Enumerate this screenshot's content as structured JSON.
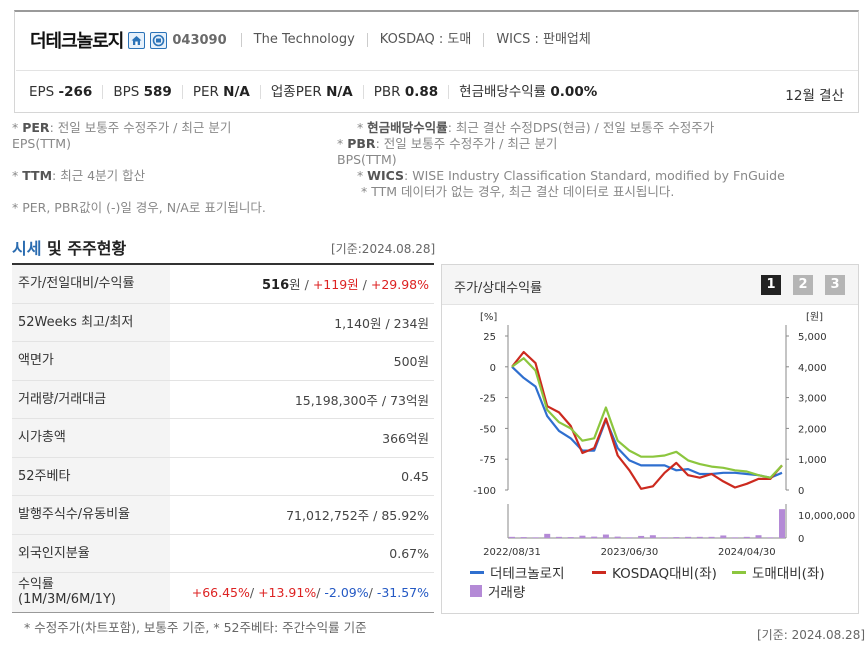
{
  "company": {
    "name": "더테크놀로지",
    "code": "043090",
    "english_name": "The Technology",
    "market": "KOSDAQ : 도매",
    "wics": "WICS : 판매업체",
    "icons": [
      "home-icon",
      "ir-icon"
    ]
  },
  "metrics": [
    {
      "label": "EPS",
      "value": "-266"
    },
    {
      "label": "BPS",
      "value": "589"
    },
    {
      "label": "PER",
      "value": "N/A"
    },
    {
      "label": "업종PER",
      "value": "N/A"
    },
    {
      "label": "PBR",
      "value": "0.88"
    },
    {
      "label": "현금배당수익률",
      "value": "0.00%"
    }
  ],
  "settlement": "12월 결산",
  "notes": {
    "per_label": "PER",
    "per_text": ": 전일 보통주 수정주가 / 최근 분기",
    "per_text2": "EPS(TTM)",
    "ttm_label": "TTM",
    "ttm_text": ": 최근 4분기 합산",
    "na_text": "* PER, PBR값이 (-)일 경우, N/A로 표기됩니다.",
    "div_label": "현금배당수익률",
    "div_text": ": 최근 결산 수정DPS(현금) / 전일 보통주 수정주가",
    "pbr_label": "PBR",
    "pbr_text": ": 전일 보통주 수정주가 / 최근 분기",
    "pbr_text2": "BPS(TTM)",
    "wics_label": "WICS",
    "wics_text": ": WISE Industry Classification Standard, modified by FnGuide",
    "ttm_missing": "* TTM 데이터가 없는 경우, 최근 결산 데이터로 표시됩니다."
  },
  "section": {
    "title_a": "시세",
    "title_b": " 및 주주현황",
    "basis": "[기준:2024.08.28]"
  },
  "table": {
    "rows": [
      {
        "label": "주가/전일대비/수익률"
      },
      {
        "label": "52Weeks 최고/최저",
        "value": "1,140원 / 234원"
      },
      {
        "label": "액면가",
        "value": "500원"
      },
      {
        "label": "거래량/거래대금",
        "value": "15,198,300주 / 73억원"
      },
      {
        "label": "시가총액",
        "value": "366억원"
      },
      {
        "label": "52주베타",
        "value": "0.45"
      },
      {
        "label": "발행주식수/유동비율",
        "value": "71,012,752주 / 85.92%"
      },
      {
        "label": "외국인지분율",
        "value": "0.67%"
      },
      {
        "label": "수익률",
        "label2": "(1M/3M/6M/1Y)"
      }
    ],
    "price": "516",
    "price_unit": "원",
    "change": "+119원",
    "rate": "+29.98%",
    "returns": [
      "+66.45%",
      "+13.91%",
      "-2.09%",
      "-31.57%"
    ],
    "note": "* 수정주가(차트포함), 보통주 기준, * 52주베타: 주간수익률 기준"
  },
  "chart_panel": {
    "title": "주가/상대수익률",
    "pages": [
      "1",
      "2",
      "3"
    ],
    "active_page": "1",
    "basis": "[기준: 2024.08.28]"
  },
  "chart_data": {
    "type": "line",
    "left_axis_unit": "[%]",
    "right_axis_unit": "[원]",
    "left_ticks": [
      "25",
      "0",
      "-25",
      "-50",
      "-75",
      "-100"
    ],
    "right_ticks": [
      "5,000",
      "4,000",
      "3,000",
      "2,000",
      "1,000",
      "0"
    ],
    "volume_ticks": [
      "10,000,000",
      "0"
    ],
    "x_ticks": [
      "2022/08/31",
      "2023/06/30",
      "2024/04/30"
    ],
    "ylim_left": [
      -100,
      25
    ],
    "ylim_volume": [
      0,
      13000000
    ],
    "x": [
      0,
      1,
      2,
      3,
      4,
      5,
      6,
      7,
      8,
      9,
      10,
      11,
      12,
      13,
      14,
      15,
      16,
      17,
      18,
      19,
      20,
      21,
      22,
      23
    ],
    "series": [
      {
        "name": "더테크놀로지",
        "color": "#2f6fcf",
        "values": [
          0,
          -9,
          -16,
          -40,
          -52,
          -58,
          -68,
          -68,
          -43,
          -66,
          -76,
          -80,
          -80,
          -80,
          -84,
          -83,
          -87,
          -87,
          -86,
          -86,
          -87,
          -88,
          -90,
          -86
        ]
      },
      {
        "name": "KOSDAQ대비(좌)",
        "color": "#cc2a1f",
        "values": [
          0,
          12,
          3,
          -32,
          -37,
          -48,
          -70,
          -66,
          -42,
          -72,
          -84,
          -99,
          -97,
          -86,
          -78,
          -88,
          -90,
          -87,
          -93,
          -98,
          -95,
          -91,
          -91,
          -80
        ]
      },
      {
        "name": "도매대비(좌)",
        "color": "#8cc63e",
        "values": [
          0,
          7,
          -3,
          -35,
          -45,
          -50,
          -60,
          -58,
          -33,
          -60,
          -68,
          -73,
          -73,
          -72,
          -69,
          -76,
          -79,
          -81,
          -82,
          -84,
          -85,
          -88,
          -90,
          -80
        ]
      }
    ],
    "volume": {
      "name": "거래량",
      "color": "#b48ad6",
      "values": [
        500000,
        400000,
        300000,
        1800000,
        500000,
        400000,
        1000000,
        600000,
        1500000,
        600000,
        300000,
        900000,
        1200000,
        300000,
        400000,
        500000,
        500000,
        500000,
        1100000,
        300000,
        500000,
        1200000,
        300000,
        12500000
      ]
    }
  }
}
